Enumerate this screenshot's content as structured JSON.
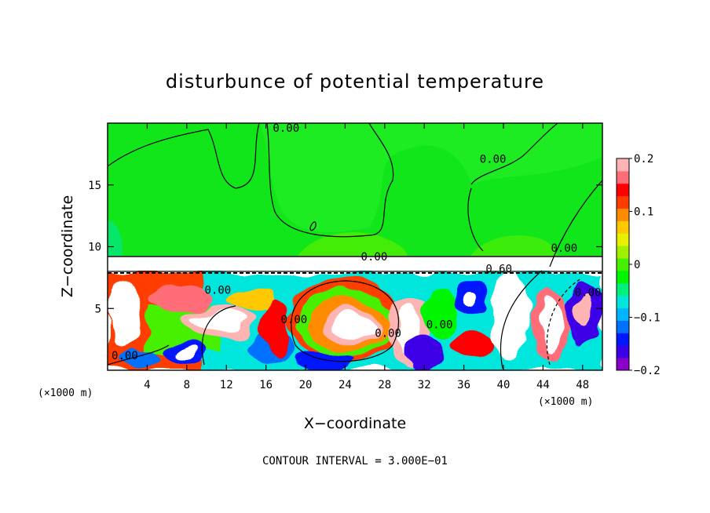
{
  "chart_data": {
    "type": "heatmap",
    "title": "disturbunce of potential temperature",
    "xlabel": "X−coordinate",
    "ylabel": "Z−coordinate",
    "x_unit": "(×1000 m)",
    "x_unit_right": "(×1000 m)",
    "xlim": [
      0,
      50
    ],
    "ylim": [
      0,
      20
    ],
    "x_ticks": [
      4,
      8,
      12,
      16,
      20,
      24,
      28,
      32,
      36,
      40,
      44,
      48
    ],
    "y_ticks": [
      5,
      10,
      15
    ],
    "colorbar": {
      "range": [
        -0.2,
        0.2
      ],
      "ticks": [
        -0.2,
        -0.1,
        0,
        0.1,
        0.2
      ],
      "tick_labels": [
        "−0.2",
        "−0.1",
        "0",
        "0.1",
        "0.2"
      ],
      "colors": [
        "#8a00c8",
        "#3c00e6",
        "#0018ff",
        "#0070ff",
        "#00b4ff",
        "#00e6dc",
        "#00f07a",
        "#00f500",
        "#46f000",
        "#a0f000",
        "#e6f000",
        "#ffc800",
        "#ff8c00",
        "#ff3c00",
        "#ff0000",
        "#ff6e78",
        "#ffb4b4"
      ]
    },
    "contour_labels": [
      {
        "text": "0.00",
        "x": 16.7,
        "y": 19.3
      },
      {
        "text": "0.00",
        "x": 37.6,
        "y": 16.8
      },
      {
        "text": "0.00",
        "x": 44.8,
        "y": 9.6
      },
      {
        "text": "0.00",
        "x": 25.6,
        "y": 8.9
      },
      {
        "text": "0.60",
        "x": 38.2,
        "y": 7.9
      },
      {
        "text": "0.00",
        "x": 9.8,
        "y": 6.2
      },
      {
        "text": "0.00",
        "x": 47.2,
        "y": 6.0
      },
      {
        "text": "0.00",
        "x": 17.5,
        "y": 3.8
      },
      {
        "text": "0.00",
        "x": 27.0,
        "y": 2.7
      },
      {
        "text": "0.00",
        "x": 32.2,
        "y": 3.4
      },
      {
        "text": "0.00",
        "x": 0.4,
        "y": 0.9
      }
    ],
    "contour_interval_label": "CONTOUR INTERVAL = 3.000E−01"
  }
}
